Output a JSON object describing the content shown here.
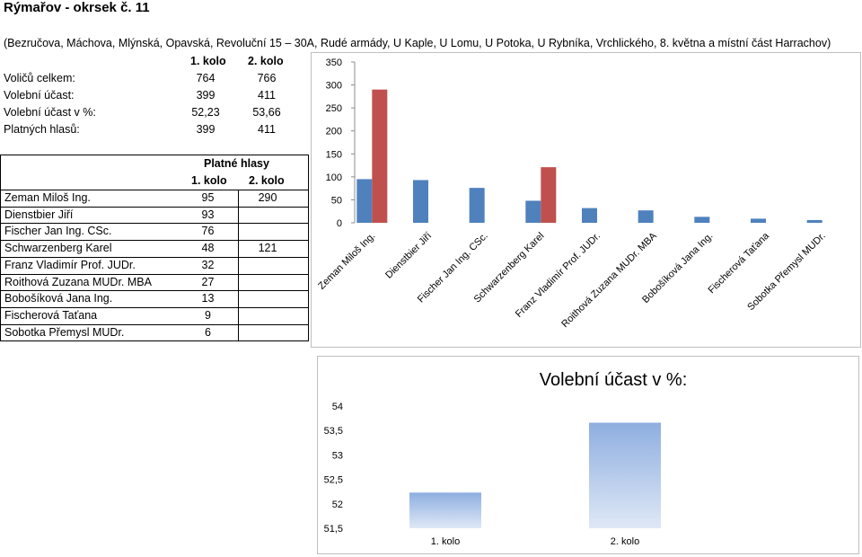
{
  "header": {
    "title": "Rýmařov - okrsek č. 11",
    "subtitle": "(Bezručova, Máchova, Mlýnská, Opavská, Revoluční 15 – 30A, Rudé armády, U Kaple, U Lomu, U Potoka, U Rybníka, Vrchlického, 8. května a místní část Harrachov)"
  },
  "summary": {
    "col1": "1. kolo",
    "col2": "2. kolo",
    "rows": [
      {
        "label": "Voličů celkem:",
        "v1": "764",
        "v2": "766"
      },
      {
        "label": "Volební účast:",
        "v1": "399",
        "v2": "411"
      },
      {
        "label": "Volební účast v %:",
        "v1": "52,23",
        "v2": "53,66"
      },
      {
        "label": "Platných hlasů:",
        "v1": "399",
        "v2": "411"
      }
    ]
  },
  "votes_table": {
    "title": "Platné hlasy",
    "col1": "1. kolo",
    "col2": "2. kolo",
    "rows": [
      {
        "name": "Zeman Miloš Ing.",
        "v1": "95",
        "v2": "290"
      },
      {
        "name": "Dienstbier Jiří",
        "v1": "93",
        "v2": ""
      },
      {
        "name": "Fischer Jan Ing. CSc.",
        "v1": "76",
        "v2": ""
      },
      {
        "name": "Schwarzenberg Karel",
        "v1": "48",
        "v2": "121"
      },
      {
        "name": "Franz Vladimír Prof. JUDr.",
        "v1": "32",
        "v2": ""
      },
      {
        "name": "Roithová Zuzana MUDr. MBA",
        "v1": "27",
        "v2": ""
      },
      {
        "name": "Bobošíková Jana Ing.",
        "v1": "13",
        "v2": ""
      },
      {
        "name": "Fischerová Taťana",
        "v1": "9",
        "v2": ""
      },
      {
        "name": "Sobotka Přemysl MUDr.",
        "v1": "6",
        "v2": ""
      }
    ]
  },
  "chart_data": [
    {
      "type": "bar",
      "categories": [
        "Zeman Miloš Ing.",
        "Dienstbier Jiří",
        "Fischer Jan Ing. CSc.",
        "Schwarzenberg Karel",
        "Franz Vladimír Prof. JUDr.",
        "Roithová Zuzana MUDr. MBA",
        "Bobošíková Jana Ing.",
        "Fischerová Taťana",
        "Sobotka Přemysl MUDr."
      ],
      "series": [
        {
          "values": [
            95,
            93,
            76,
            48,
            32,
            27,
            13,
            9,
            6
          ],
          "color": "#4f81bd"
        },
        {
          "values": [
            290,
            null,
            null,
            121,
            null,
            null,
            null,
            null,
            null
          ],
          "color": "#c0504d"
        }
      ],
      "ylim": [
        0,
        350
      ],
      "yticks": [
        "0",
        "50",
        "100",
        "150",
        "200",
        "250",
        "300",
        "350"
      ],
      "ytick_values": [
        0,
        50,
        100,
        150,
        200,
        250,
        300,
        350
      ],
      "grid": false,
      "legend": "none"
    },
    {
      "type": "bar",
      "title": "Volební účast v %:",
      "categories": [
        "1. kolo",
        "2. kolo"
      ],
      "values": [
        52.23,
        53.66
      ],
      "ylim": [
        51.5,
        54
      ],
      "yticks": [
        "51,5",
        "52",
        "52,5",
        "53",
        "53,5",
        "54"
      ],
      "ytick_values": [
        51.5,
        52,
        52.5,
        53,
        53.5,
        54
      ],
      "grid": false,
      "legend": "none",
      "color": "#95b3e0"
    }
  ]
}
